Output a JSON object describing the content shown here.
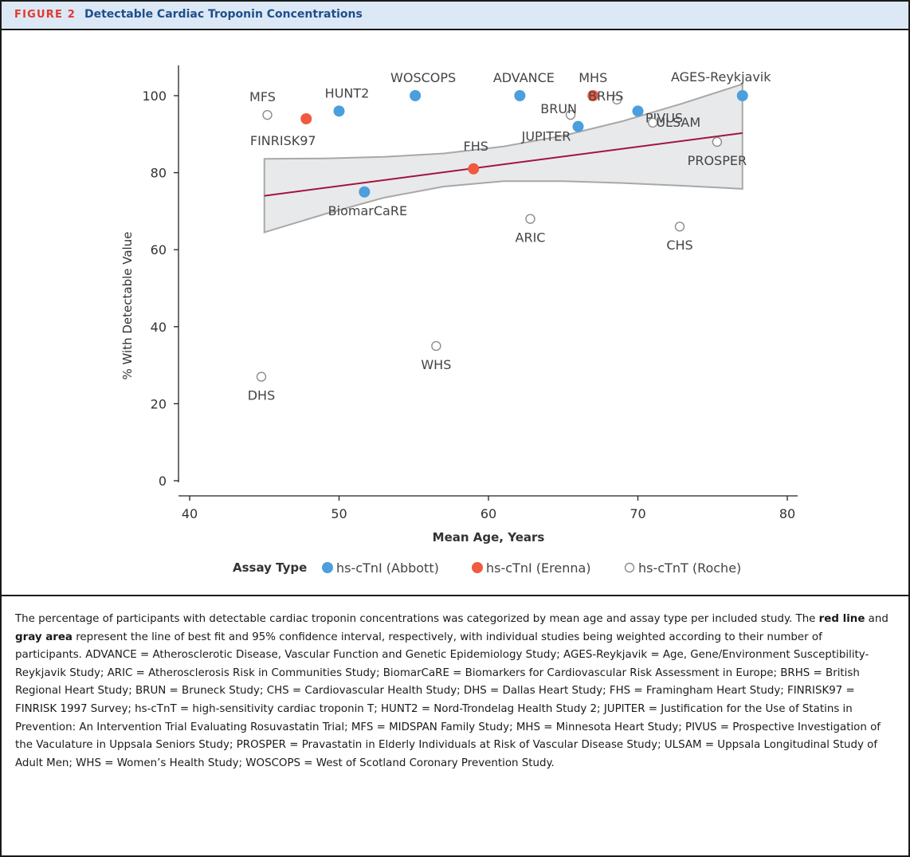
{
  "figure": {
    "number_label": "FIGURE 2",
    "title": "Detectable Cardiac Troponin Concentrations"
  },
  "chart_data": {
    "type": "scatter",
    "xlabel": "Mean Age, Years",
    "ylabel": "% With Detectable Value",
    "xlim": [
      40,
      80
    ],
    "ylim": [
      0,
      100
    ],
    "x_ticks": [
      40,
      50,
      60,
      70,
      80
    ],
    "y_ticks": [
      0,
      20,
      40,
      60,
      80,
      100
    ],
    "grid": false,
    "legend_position": "bottom",
    "legend_title": "Assay Type",
    "series": [
      {
        "name": "hs-cTnI (Abbott)",
        "color": "#4a9fdc",
        "marker": "filled-circle"
      },
      {
        "name": "hs-cTnI (Erenna)",
        "color": "#ef5a40",
        "marker": "filled-circle"
      },
      {
        "name": "hs-cTnT (Roche)",
        "color": "#8c8c8c",
        "marker": "open-circle"
      }
    ],
    "points": [
      {
        "label": "MFS",
        "x": 45.2,
        "y": 95,
        "series": 2
      },
      {
        "label": "FINRISK97",
        "x": 47.8,
        "y": 94,
        "series": 1
      },
      {
        "label": "HUNT2",
        "x": 50.0,
        "y": 96,
        "series": 0
      },
      {
        "label": "WOSCOPS",
        "x": 55.1,
        "y": 100,
        "series": 0
      },
      {
        "label": "ADVANCE",
        "x": 62.1,
        "y": 100,
        "series": 0
      },
      {
        "label": "MHS",
        "x": 67.0,
        "y": 100,
        "series": 1
      },
      {
        "label": "BRHS",
        "x": 68.6,
        "y": 99,
        "series": 2
      },
      {
        "label": "BRUN",
        "x": 65.5,
        "y": 95,
        "series": 2
      },
      {
        "label": "JUPITER",
        "x": 66.0,
        "y": 92,
        "series": 0
      },
      {
        "label": "PIVUS",
        "x": 70.0,
        "y": 96,
        "series": 0
      },
      {
        "label": "ULSAM",
        "x": 71.0,
        "y": 93,
        "series": 2
      },
      {
        "label": "AGES-Reykjavik",
        "x": 77.0,
        "y": 100,
        "series": 0
      },
      {
        "label": "PROSPER",
        "x": 75.3,
        "y": 88,
        "series": 2
      },
      {
        "label": "FHS",
        "x": 59.0,
        "y": 81,
        "series": 1
      },
      {
        "label": "BiomarCaRE",
        "x": 51.7,
        "y": 75,
        "series": 0
      },
      {
        "label": "ARIC",
        "x": 62.8,
        "y": 68,
        "series": 2
      },
      {
        "label": "CHS",
        "x": 72.8,
        "y": 66,
        "series": 2
      },
      {
        "label": "WHS",
        "x": 56.5,
        "y": 35,
        "series": 2
      },
      {
        "label": "DHS",
        "x": 44.8,
        "y": 27,
        "series": 2
      }
    ],
    "fit_line": {
      "x": [
        45,
        77
      ],
      "y": [
        74,
        90.3
      ],
      "color": "#a0153e"
    },
    "confidence_band": {
      "x": [
        45,
        49,
        53,
        57,
        61,
        65,
        69,
        73,
        77
      ],
      "upper": [
        83.6,
        83.7,
        84.1,
        85.0,
        86.8,
        89.6,
        93.4,
        98.0,
        103.0
      ],
      "lower": [
        64.5,
        69.2,
        73.5,
        76.4,
        77.8,
        77.8,
        77.3,
        76.6,
        75.8
      ],
      "fill": "#e8e9eb",
      "stroke": "#a8a8a8"
    }
  },
  "caption": {
    "sentence1": "The percentage of participants with detectable cardiac troponin concentrations was categorized by mean age and assay type per included study. The ",
    "red_line": "red line",
    "and": " and ",
    "gray_area": "gray area",
    "sentence2": " represent the line of best fit and 95% confidence interval, respectively, with individual studies being weighted according to their number of participants. ADVANCE = Atherosclerotic Disease, Vascular Function and Genetic Epidemiology Study; AGES-Reykjavik = Age, Gene/Environment Susceptibility-Reykjavik Study; ARIC = Atherosclerosis Risk in Communities Study; BiomarCaRE = Biomarkers for Cardiovascular Risk Assessment in Europe; BRHS = British Regional Heart Study; BRUN = Bruneck Study; CHS = Cardiovascular Health Study; DHS = Dallas Heart Study; FHS = Framingham Heart Study; FINRISK97 = FINRISK 1997 Survey; hs-cTnT = high-sensitivity cardiac troponin T; HUNT2 = Nord-Trondelag Health Study 2; JUPITER = Justification for the Use of Statins in Prevention: An Intervention Trial Evaluating Rosuvastatin Trial; MFS = MIDSPAN Family Study; MHS = Minnesota Heart Study; PIVUS = Prospective Investigation of the Vaculature in Uppsala Seniors Study; PROSPER = Pravastatin in Elderly Individuals at Risk of Vascular Disease Study; ULSAM = Uppsala Longitudinal Study of Adult Men; WHS = Women’s Health Study; WOSCOPS = West of Scotland Coronary Prevention Study."
  }
}
